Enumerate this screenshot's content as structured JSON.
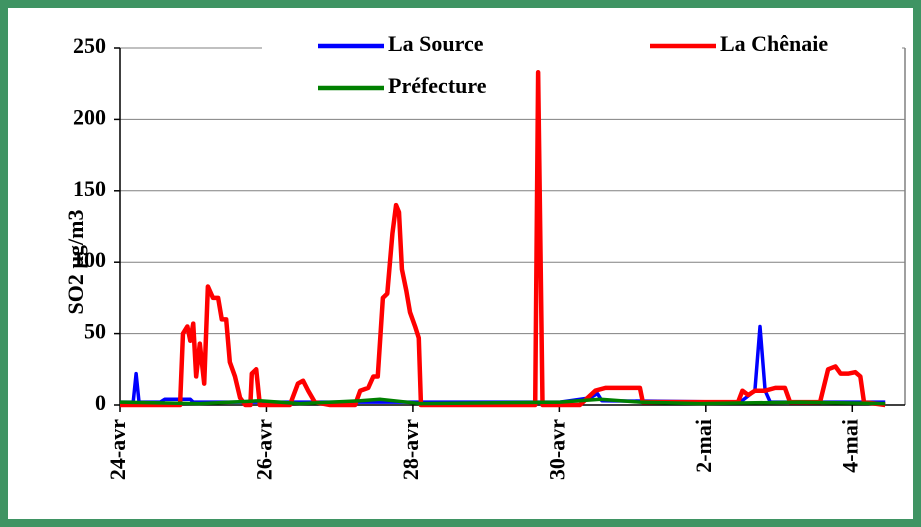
{
  "chart_data": {
    "type": "line",
    "ylabel": "SO2 µg/m3",
    "xlim": [
      0,
      10.72
    ],
    "xticks": [
      {
        "value": 0,
        "label": "24-avr"
      },
      {
        "value": 2,
        "label": "26-avr"
      },
      {
        "value": 4,
        "label": "28-avr"
      },
      {
        "value": 6,
        "label": "30-avr"
      },
      {
        "value": 8,
        "label": "2-mai"
      },
      {
        "value": 10,
        "label": "4-mai"
      }
    ],
    "ylim": [
      0,
      250
    ],
    "yticks": [
      0,
      50,
      100,
      150,
      200,
      250
    ],
    "grid": true,
    "legend": "top",
    "series": [
      {
        "name": "La Source",
        "color": "#0000ff",
        "x": [
          0,
          0.18,
          0.22,
          0.26,
          0.55,
          0.61,
          0.96,
          1.0,
          6.01,
          6.42,
          6.52,
          6.58,
          8.47,
          8.67,
          8.74,
          8.81,
          8.88,
          10.45
        ],
        "values": [
          2,
          2,
          22,
          2,
          2,
          4,
          4,
          2,
          2,
          5,
          8,
          3,
          2,
          10,
          55,
          10,
          2,
          2
        ]
      },
      {
        "name": "La Chênaie",
        "color": "#ff0000",
        "x": [
          0,
          0.82,
          0.86,
          0.92,
          0.96,
          1.0,
          1.04,
          1.09,
          1.15,
          1.2,
          1.27,
          1.34,
          1.39,
          1.45,
          1.5,
          1.57,
          1.64,
          1.71,
          1.78,
          1.8,
          1.86,
          1.91,
          2.32,
          2.43,
          2.5,
          2.57,
          2.66,
          2.87,
          3.21,
          3.28,
          3.39,
          3.46,
          3.52,
          3.59,
          3.65,
          3.72,
          3.77,
          3.81,
          3.85,
          3.91,
          3.96,
          4.03,
          4.08,
          4.11,
          5.67,
          5.71,
          5.77,
          6.28,
          6.49,
          6.63,
          7.1,
          7.14,
          7.92,
          8.44,
          8.5,
          8.58,
          8.67,
          8.81,
          8.95,
          9.08,
          9.15,
          9.56,
          9.67,
          9.77,
          9.84,
          9.95,
          10.04,
          10.11,
          10.16,
          10.45
        ],
        "values": [
          0,
          0,
          50,
          55,
          45,
          57,
          20,
          43,
          15,
          83,
          75,
          75,
          60,
          60,
          30,
          20,
          5,
          0,
          0,
          22,
          25,
          0,
          0,
          15,
          17,
          10,
          2,
          0,
          0,
          10,
          12,
          20,
          20,
          75,
          78,
          120,
          140,
          135,
          95,
          80,
          65,
          55,
          47,
          0,
          0,
          233,
          0,
          0,
          10,
          12,
          12,
          2,
          2,
          2,
          10,
          7,
          10,
          10,
          12,
          12,
          2,
          2,
          25,
          27,
          22,
          22,
          23,
          20,
          2,
          0
        ]
      },
      {
        "name": "Préfecture",
        "color": "#008000",
        "x": [
          0,
          1.09,
          1.91,
          2.46,
          3.28,
          3.55,
          4.1,
          6.01,
          6.56,
          7.1,
          7.92,
          9.29,
          10.45
        ],
        "values": [
          2,
          1,
          3,
          1,
          3,
          4,
          1,
          2,
          4,
          2,
          1,
          2,
          1
        ]
      }
    ]
  }
}
